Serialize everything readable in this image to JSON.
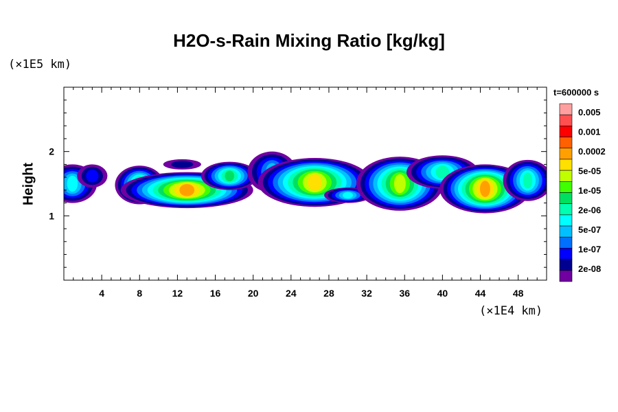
{
  "chart_data": {
    "type": "heatmap",
    "title": "H2O-s-Rain Mixing Ratio [kg/kg]",
    "xlabel": "",
    "ylabel": "Height",
    "x_scale_note": "(×1E4 km)",
    "y_scale_note": "(×1E5 km)",
    "time_label": "t=600000 s",
    "xlim": [
      0,
      51
    ],
    "ylim": [
      0,
      3
    ],
    "x_ticks": [
      "4",
      "8",
      "12",
      "16",
      "20",
      "24",
      "28",
      "32",
      "36",
      "40",
      "44",
      "48"
    ],
    "x_tick_values": [
      4,
      8,
      12,
      16,
      20,
      24,
      28,
      32,
      36,
      40,
      44,
      48
    ],
    "y_ticks": [
      "1",
      "2"
    ],
    "y_tick_values": [
      1,
      2
    ],
    "legend": {
      "labels": [
        "0.005",
        "0.001",
        "0.0002",
        "5e-05",
        "1e-05",
        "2e-06",
        "5e-07",
        "1e-07",
        "2e-08"
      ],
      "colors": [
        "#ffa0a0",
        "#ff5050",
        "#ff0000",
        "#ff6000",
        "#ffa000",
        "#ffe000",
        "#c0ff00",
        "#40ff00",
        "#00e060",
        "#00ffb0",
        "#00ffff",
        "#00c0ff",
        "#0070ff",
        "#0000ff",
        "#000090",
        "#7000a0"
      ]
    },
    "clouds": [
      {
        "x": [
          0,
          4.2
        ],
        "y": [
          1.18,
          1.92
        ],
        "peak_level": 7
      },
      {
        "x": [
          5.8,
          20.5
        ],
        "y": [
          1.12,
          1.78
        ],
        "peak_level": 12
      },
      {
        "x": [
          20,
          32
        ],
        "y": [
          1.18,
          1.98
        ],
        "peak_level": 11
      },
      {
        "x": [
          31,
          51
        ],
        "y": [
          1.05,
          1.95
        ],
        "peak_level": 12
      }
    ]
  }
}
